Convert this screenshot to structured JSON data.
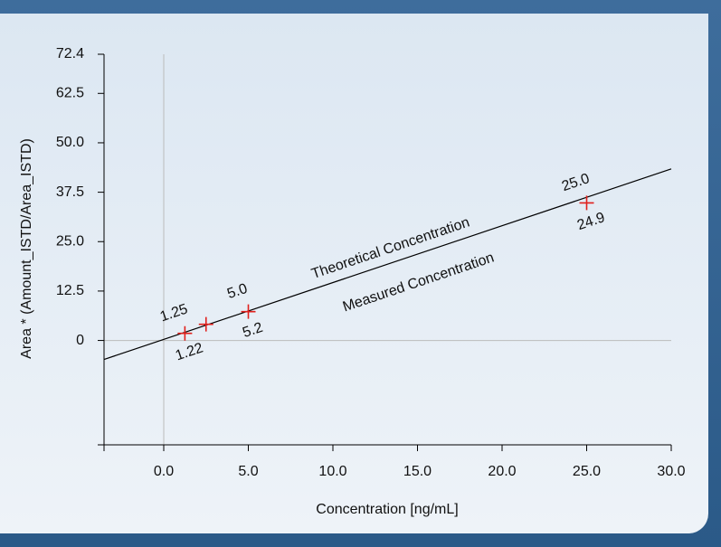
{
  "chart_data": {
    "type": "scatter",
    "x_label": "Concentration [ng/mL]",
    "y_label": "Area * (Amount_ISTD/Area_ISTD)",
    "xlim": [
      -3.53,
      30
    ],
    "ylim": [
      -26.4,
      72.4
    ],
    "xticks": [
      {
        "value": 0,
        "label": "0.0"
      },
      {
        "value": 5,
        "label": "5.0"
      },
      {
        "value": 10,
        "label": "10.0"
      },
      {
        "value": 15,
        "label": "15.0"
      },
      {
        "value": 20,
        "label": "20.0"
      },
      {
        "value": 25,
        "label": "25.0"
      },
      {
        "value": 30,
        "label": "30.0"
      }
    ],
    "yticks": [
      0,
      12.5,
      {
        "value": 25,
        "label": "25.0"
      },
      37.5,
      {
        "value": 50,
        "label": "50.0"
      },
      62.5,
      72.4
    ],
    "series": [
      {
        "x": [
          1.25,
          2.5,
          5,
          25
        ],
        "values": [
          1.8,
          4.1,
          7.3,
          34.8
        ],
        "color": "#e0201c",
        "theoretical_labels": [
          "1.25",
          null,
          "5.0",
          "25.0"
        ],
        "measured_labels": [
          "1.22",
          null,
          "5.2",
          "24.9"
        ]
      }
    ],
    "fit_line": {
      "x": [
        -3.53,
        30
      ],
      "values": [
        -4.8,
        43.4
      ],
      "color": "#000000"
    },
    "theoretical_line_label": "Theoretical Concentration",
    "measured_line_label": "Measured Concentration"
  }
}
